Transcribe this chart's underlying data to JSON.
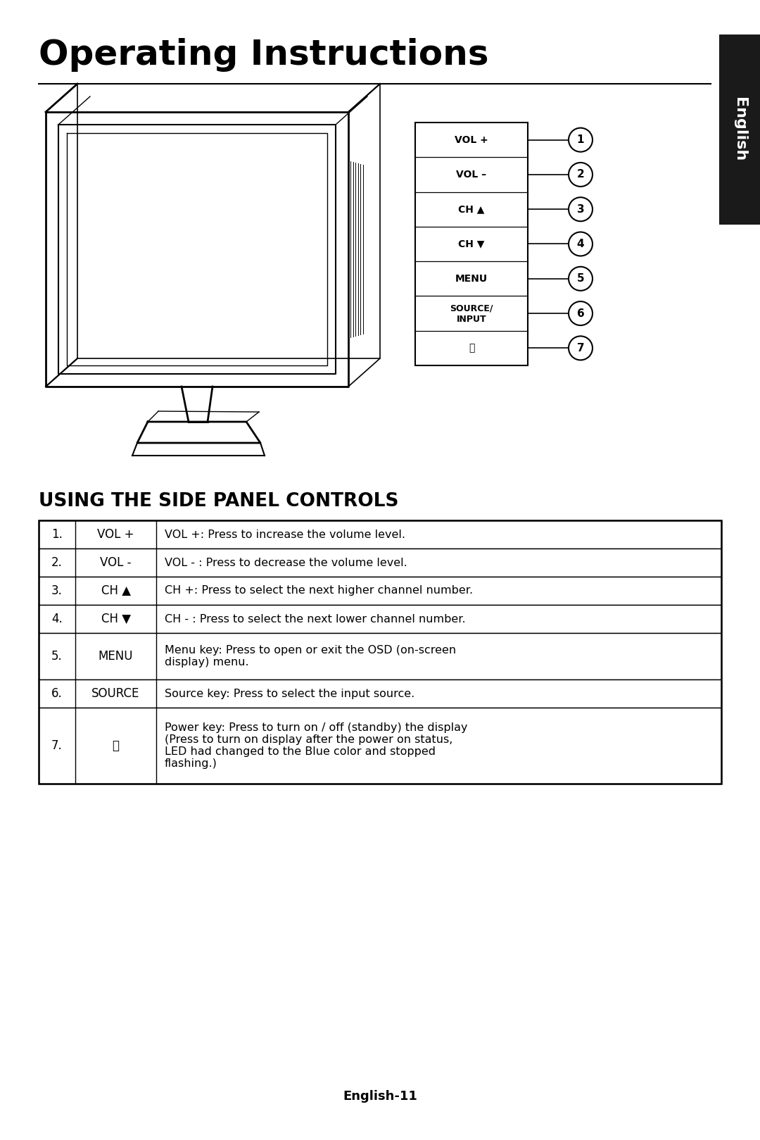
{
  "title": "Operating Instructions",
  "tab_label": "English",
  "section_title": "USING THE SIDE PANEL CONTROLS",
  "table_rows": [
    [
      "1.",
      "VOL +",
      "VOL +: Press to increase the volume level."
    ],
    [
      "2.",
      "VOL -",
      "VOL - : Press to decrease the volume level."
    ],
    [
      "3.",
      "CH ▲",
      "CH +: Press to select the next higher channel number."
    ],
    [
      "4.",
      "CH ▼",
      "CH - : Press to select the next lower channel number."
    ],
    [
      "5.",
      "MENU",
      "Menu key: Press to open or exit the OSD (on-screen\ndisplay) menu."
    ],
    [
      "6.",
      "SOURCE",
      "Source key: Press to select the input source."
    ],
    [
      "7.",
      "⏻",
      "Power key: Press to turn on / off (standby) the display\n(Press to turn on display after the power on status,\nLED had changed to the Blue color and stopped\nflashing.)"
    ]
  ],
  "button_labels": [
    "VOL +",
    "VOL –",
    "CH ▲",
    "CH ▼",
    "MENU",
    "SOURCE/\nINPUT",
    "⏻"
  ],
  "footer": "English-11",
  "bg_color": "#ffffff",
  "text_color": "#000000",
  "tab_bg": "#1a1a1a",
  "tab_text": "#ffffff",
  "line_color": "#000000"
}
